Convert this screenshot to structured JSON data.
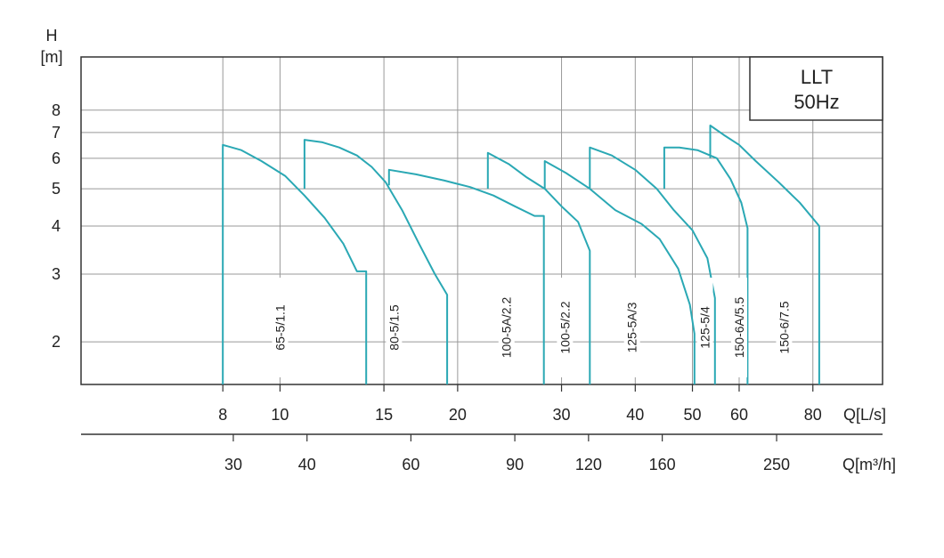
{
  "chart_data": {
    "type": "line",
    "title_box": {
      "line1": "LLT",
      "line2": "50Hz"
    },
    "ylabel": {
      "line1": "H",
      "line2": "[m]"
    },
    "xlabel_ls": "Q[L/s]",
    "xlabel_m3h": "Q[m³/h]",
    "y_scale": "log",
    "x_scale": "log",
    "ylim": [
      1.55,
      11
    ],
    "xlim_ls": [
      4.6,
      105
    ],
    "y_ticks": [
      "2",
      "3",
      "4",
      "5",
      "6",
      "7",
      "8"
    ],
    "x_ticks_ls": [
      "8",
      "10",
      "15",
      "20",
      "30",
      "40",
      "50",
      "60",
      "80"
    ],
    "x_ticks_m3h": [
      "30",
      "40",
      "60",
      "90",
      "120",
      "160",
      "250"
    ],
    "y_tick_values": [
      2,
      3,
      4,
      5,
      6,
      7,
      8
    ],
    "x_tick_values_ls": [
      8,
      10,
      15,
      20,
      30,
      40,
      50,
      60,
      80
    ],
    "x_tick_values_m3h": [
      30,
      40,
      60,
      90,
      120,
      160,
      250
    ],
    "grid": true,
    "line_color": "#2aa8b4",
    "series": [
      {
        "name": "65-5/1.1",
        "label_x": 10,
        "points": [
          [
            8,
            1.55
          ],
          [
            8,
            6.5
          ],
          [
            8.6,
            6.3
          ],
          [
            9.3,
            5.9
          ],
          [
            10.2,
            5.4
          ],
          [
            11,
            4.8
          ],
          [
            11.9,
            4.2
          ],
          [
            12.8,
            3.6
          ],
          [
            13.5,
            3.05
          ],
          [
            14,
            3.05
          ],
          [
            14,
            1.55
          ]
        ]
      },
      {
        "name": "80-5/1.5",
        "label_x": 15.6,
        "points": [
          [
            11,
            5.0
          ],
          [
            11,
            6.7
          ],
          [
            11.8,
            6.6
          ],
          [
            12.6,
            6.4
          ],
          [
            13.5,
            6.1
          ],
          [
            14.3,
            5.7
          ],
          [
            15.1,
            5.2
          ],
          [
            16.1,
            4.4
          ],
          [
            17.2,
            3.6
          ],
          [
            18.3,
            3.0
          ],
          [
            19.2,
            2.65
          ],
          [
            19.2,
            1.55
          ]
        ]
      },
      {
        "name": "100-5A/2.2",
        "label_x": 24.2,
        "points": [
          [
            15.3,
            5.1
          ],
          [
            15.3,
            5.6
          ],
          [
            17,
            5.45
          ],
          [
            19,
            5.25
          ],
          [
            21,
            5.05
          ],
          [
            23,
            4.8
          ],
          [
            25,
            4.5
          ],
          [
            27,
            4.25
          ],
          [
            28,
            4.25
          ],
          [
            28,
            1.55
          ]
        ]
      },
      {
        "name": "100-5/2.2",
        "label_x": 30.4,
        "points": [
          [
            22.5,
            5.0
          ],
          [
            22.5,
            6.2
          ],
          [
            24.4,
            5.8
          ],
          [
            26.2,
            5.35
          ],
          [
            28.1,
            5.0
          ],
          [
            30,
            4.5
          ],
          [
            32,
            4.1
          ],
          [
            33.5,
            3.45
          ],
          [
            33.5,
            1.55
          ]
        ]
      },
      {
        "name": "125-5A/3",
        "label_x": 39.5,
        "points": [
          [
            28.1,
            5.0
          ],
          [
            28.1,
            5.9
          ],
          [
            30.5,
            5.5
          ],
          [
            33.5,
            5.0
          ],
          [
            37,
            4.4
          ],
          [
            41,
            4.05
          ],
          [
            44,
            3.7
          ],
          [
            47.3,
            3.1
          ],
          [
            49.5,
            2.5
          ],
          [
            50.4,
            2.1
          ],
          [
            50.4,
            1.55
          ]
        ]
      },
      {
        "name": "125-5/4",
        "label_x": 52.5,
        "points": [
          [
            33.5,
            5.0
          ],
          [
            33.5,
            6.4
          ],
          [
            36.5,
            6.1
          ],
          [
            40,
            5.6
          ],
          [
            43.5,
            5.0
          ],
          [
            46.5,
            4.4
          ],
          [
            50,
            3.9
          ],
          [
            53,
            3.3
          ],
          [
            54.6,
            2.6
          ],
          [
            54.6,
            1.55
          ]
        ]
      },
      {
        "name": "150-6A/5.5",
        "label_x": 60,
        "points": [
          [
            44.8,
            5.0
          ],
          [
            44.8,
            6.4
          ],
          [
            47.5,
            6.4
          ],
          [
            51,
            6.3
          ],
          [
            55,
            6.0
          ],
          [
            58,
            5.3
          ],
          [
            60.5,
            4.6
          ],
          [
            62,
            3.95
          ],
          [
            62,
            1.55
          ]
        ]
      },
      {
        "name": "150-6/7.5",
        "label_x": 71.5,
        "points": [
          [
            53.6,
            6.0
          ],
          [
            53.6,
            7.3
          ],
          [
            56.5,
            6.9
          ],
          [
            60,
            6.5
          ],
          [
            64,
            5.9
          ],
          [
            70,
            5.2
          ],
          [
            76,
            4.6
          ],
          [
            82,
            4.0
          ],
          [
            82,
            1.55
          ]
        ]
      }
    ]
  }
}
